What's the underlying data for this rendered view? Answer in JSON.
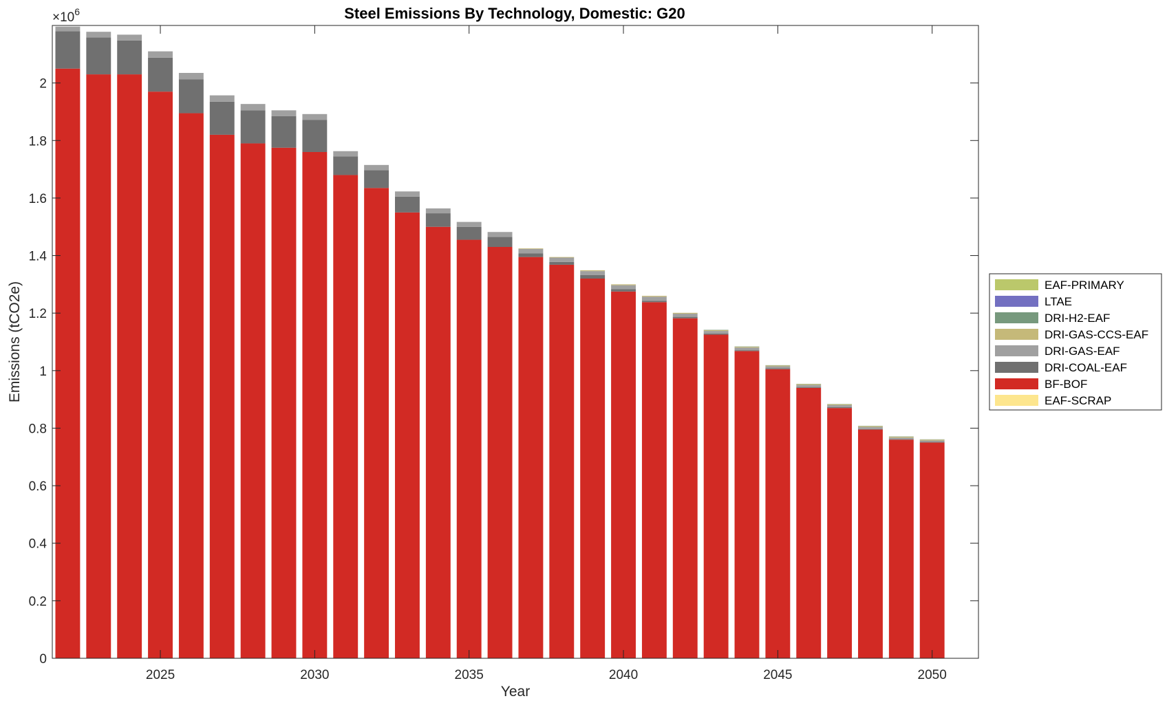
{
  "chart_data": {
    "type": "bar",
    "stacked": true,
    "title": "Steel Emissions By Technology, Domestic: G20",
    "xlabel": "Year",
    "ylabel": "Emissions (tCO2e)",
    "y_exponent_label": "×10",
    "y_exponent_power": "6",
    "ylim": [
      0,
      2200000
    ],
    "xlim": [
      2021.5,
      2051.5
    ],
    "yticks": [
      0,
      0.2,
      0.4,
      0.6,
      0.8,
      1,
      1.2,
      1.4,
      1.6,
      1.8,
      2
    ],
    "xticks": [
      2025,
      2030,
      2035,
      2040,
      2045,
      2050
    ],
    "grid": false,
    "legend_position": "right",
    "categories": [
      2022,
      2023,
      2024,
      2025,
      2026,
      2027,
      2028,
      2029,
      2030,
      2031,
      2032,
      2033,
      2034,
      2035,
      2036,
      2037,
      2038,
      2039,
      2040,
      2041,
      2042,
      2043,
      2044,
      2045,
      2046,
      2047,
      2048,
      2049,
      2050
    ],
    "series": [
      {
        "name": "EAF-SCRAP",
        "color": "#FDE68E",
        "values": [
          0,
          0,
          0,
          0,
          0,
          0,
          0,
          0,
          0,
          0,
          0,
          0,
          0,
          0,
          0,
          0,
          0,
          0,
          0,
          0,
          0,
          0,
          0,
          0,
          0,
          0,
          0,
          0,
          0
        ]
      },
      {
        "name": "BF-BOF",
        "color": "#D22A24",
        "values": [
          2050000,
          2030000,
          2030000,
          1970000,
          1895000,
          1820000,
          1790000,
          1775000,
          1760000,
          1680000,
          1635000,
          1550000,
          1500000,
          1455000,
          1430000,
          1395000,
          1368000,
          1320000,
          1275000,
          1238000,
          1182000,
          1125000,
          1068000,
          1005000,
          940000,
          870000,
          795000,
          760000,
          750000
        ]
      },
      {
        "name": "DRI-COAL-EAF",
        "color": "#707070",
        "values": [
          130000,
          128000,
          118000,
          118000,
          118000,
          115000,
          115000,
          110000,
          112000,
          65000,
          62000,
          55000,
          47000,
          45000,
          35000,
          13000,
          10000,
          12000,
          8000,
          5000,
          5000,
          4000,
          3000,
          3000,
          3000,
          3000,
          2000,
          2000,
          2000
        ]
      },
      {
        "name": "DRI-GAS-EAF",
        "color": "#A0A0A0",
        "values": [
          16000,
          20000,
          20000,
          22000,
          22000,
          22000,
          22000,
          20000,
          20000,
          18000,
          18000,
          18000,
          17000,
          17000,
          17000,
          15000,
          15000,
          14000,
          14000,
          14000,
          11000,
          9000,
          9000,
          7000,
          7000,
          7000,
          7000,
          5000,
          5000
        ]
      },
      {
        "name": "DRI-GAS-CCS-EAF",
        "color": "#C5B979",
        "values": [
          0,
          0,
          0,
          0,
          0,
          0,
          0,
          0,
          0,
          0,
          0,
          0,
          0,
          0,
          0,
          2000,
          2000,
          3000,
          3000,
          3000,
          3000,
          3000,
          3000,
          3000,
          3000,
          3000,
          3000,
          3000,
          3000
        ]
      },
      {
        "name": "DRI-H2-EAF",
        "color": "#77997D",
        "values": [
          0,
          0,
          0,
          0,
          0,
          0,
          0,
          0,
          0,
          0,
          0,
          0,
          0,
          0,
          0,
          0,
          0,
          0,
          0,
          0,
          0,
          1000,
          1000,
          1000,
          1000,
          1000,
          1000,
          1000,
          1000
        ]
      },
      {
        "name": "LTAE",
        "color": "#7370C1",
        "values": [
          0,
          0,
          0,
          0,
          0,
          0,
          0,
          0,
          0,
          0,
          0,
          0,
          0,
          0,
          0,
          0,
          0,
          0,
          0,
          0,
          0,
          0,
          0,
          0,
          0,
          0,
          0,
          0,
          0
        ]
      },
      {
        "name": "EAF-PRIMARY",
        "color": "#BBC86B",
        "values": [
          0,
          0,
          0,
          0,
          0,
          0,
          0,
          0,
          0,
          0,
          0,
          0,
          0,
          0,
          0,
          0,
          0,
          0,
          0,
          0,
          0,
          0,
          0,
          0,
          0,
          0,
          0,
          0,
          0
        ]
      }
    ],
    "legend_order": [
      "EAF-PRIMARY",
      "LTAE",
      "DRI-H2-EAF",
      "DRI-GAS-CCS-EAF",
      "DRI-GAS-EAF",
      "DRI-COAL-EAF",
      "BF-BOF",
      "EAF-SCRAP"
    ]
  }
}
